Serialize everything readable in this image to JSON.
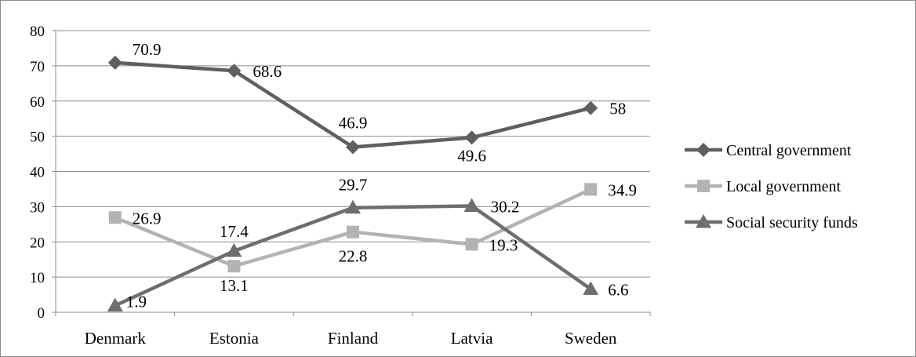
{
  "chart_data": {
    "type": "line",
    "title": "",
    "xlabel": "",
    "ylabel": "",
    "ylim": [
      0,
      80
    ],
    "yticks": [
      0,
      10,
      20,
      30,
      40,
      50,
      60,
      70,
      80
    ],
    "grid": "horizontal",
    "legend_position": "right",
    "categories": [
      "Denmark",
      "Estonia",
      "Finland",
      "Latvia",
      "Sweden"
    ],
    "series": [
      {
        "name": "Central government",
        "values": [
          70.9,
          68.6,
          46.9,
          49.6,
          58
        ],
        "labels": [
          "70.9",
          "68.6",
          "46.9",
          "49.6",
          "58"
        ],
        "color": "#5f5f5f",
        "marker": "diamond"
      },
      {
        "name": "Local government",
        "values": [
          26.9,
          13.1,
          22.8,
          19.3,
          34.9
        ],
        "labels": [
          "26.9",
          "13.1",
          "22.8",
          "19.3",
          "34.9"
        ],
        "color": "#b3b3b3",
        "marker": "square"
      },
      {
        "name": "Social security funds",
        "values": [
          1.9,
          17.4,
          29.7,
          30.2,
          6.6
        ],
        "labels": [
          "1.9",
          "17.4",
          "29.7",
          "30.2",
          "6.6"
        ],
        "color": "#6e6e6e",
        "marker": "triangle"
      }
    ]
  }
}
